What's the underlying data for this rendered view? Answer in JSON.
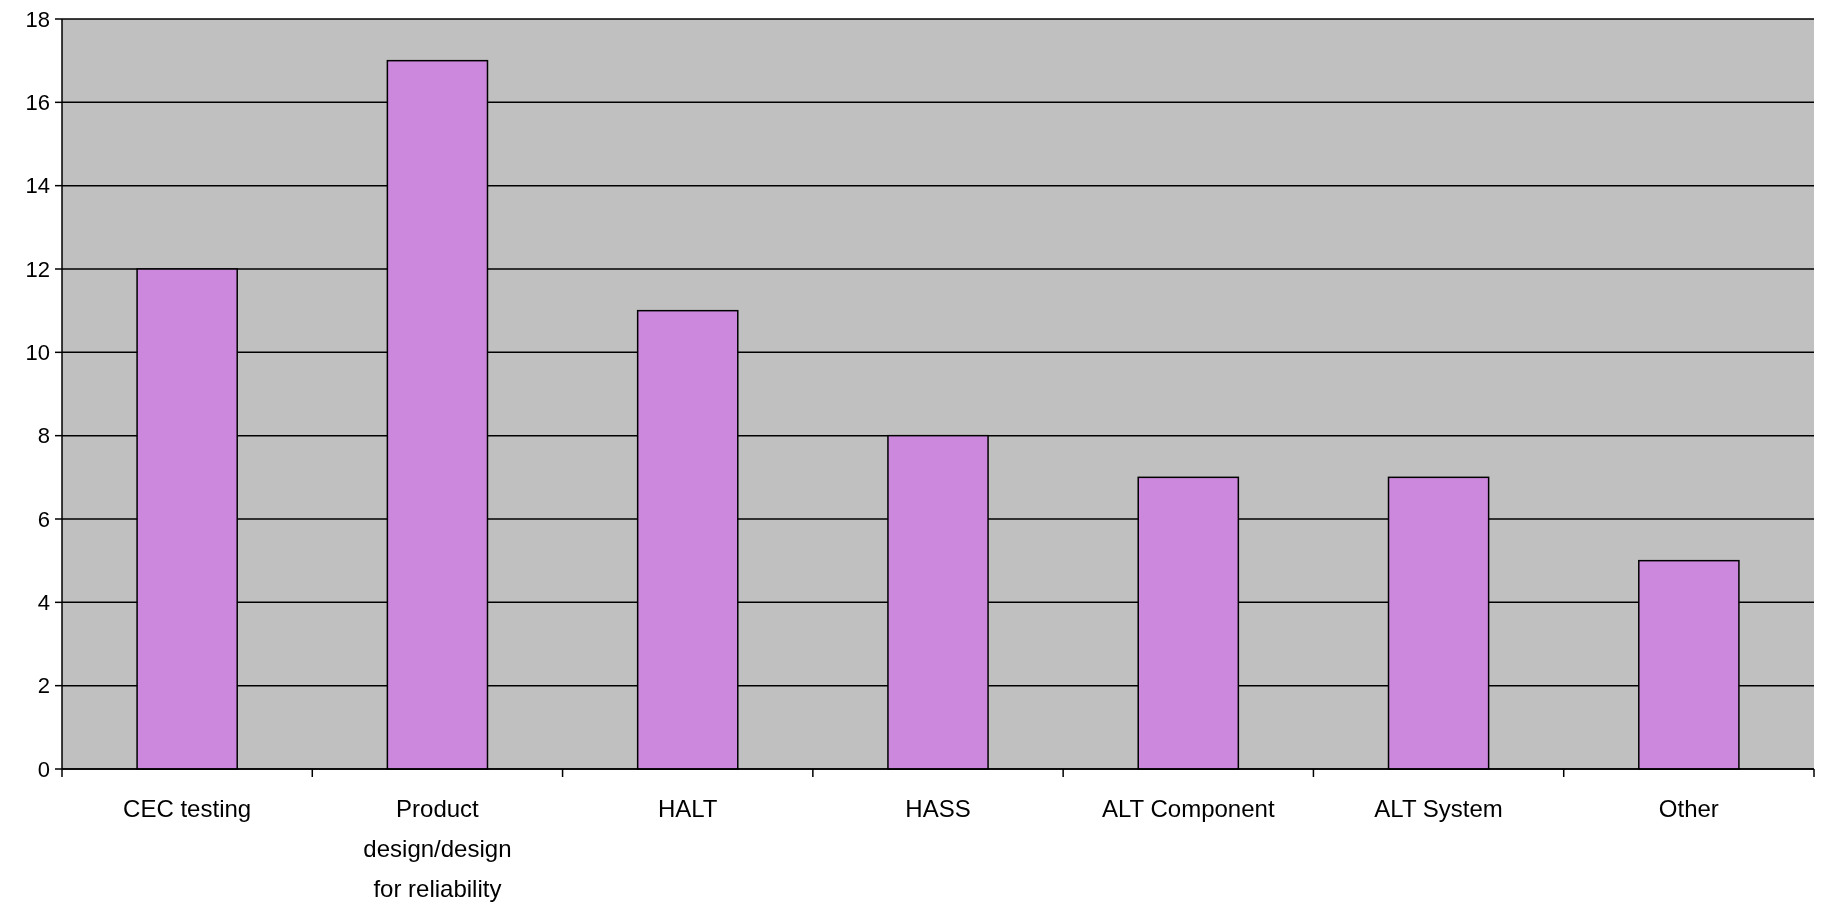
{
  "chart_data": {
    "type": "bar",
    "categories": [
      "CEC testing",
      "Product design/design for reliability",
      "HALT",
      "HASS",
      "ALT Component",
      "ALT System",
      "Other"
    ],
    "values": [
      12,
      17,
      11,
      8,
      7,
      7,
      5
    ],
    "color": "#cc88dd",
    "ylim": [
      0,
      18
    ],
    "yticks": [
      0,
      2,
      4,
      6,
      8,
      10,
      12,
      14,
      16,
      18
    ],
    "grid": "y"
  }
}
